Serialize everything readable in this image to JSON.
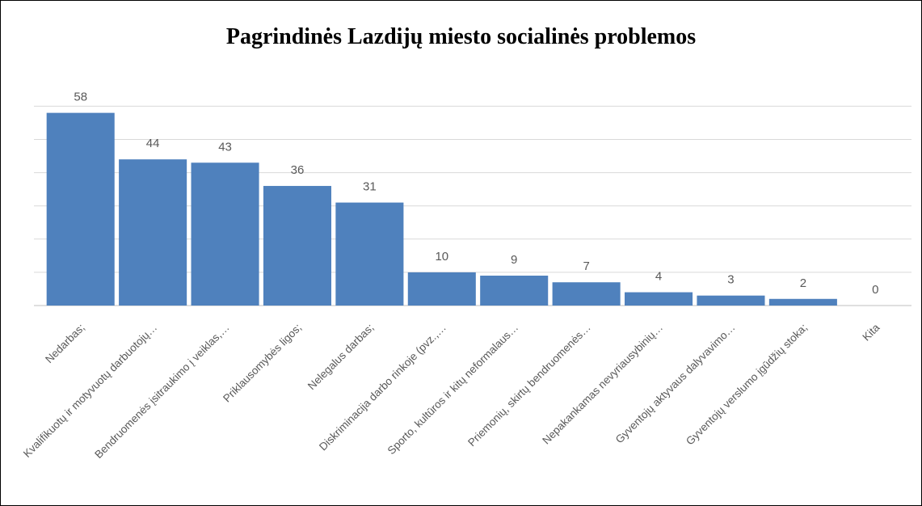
{
  "chart_data": {
    "type": "bar",
    "title": "Pagrindinės Lazdijų miesto socialinės problemos",
    "categories": [
      "Nedarbas;",
      "Kvalifikuotų ir motyvuotų darbuotojų…",
      "Bendruomenės įsitraukimo į veiklas,…",
      "Priklausomybės ligos;",
      "Nelegalus darbas;",
      "Diskriminacija darbo rinkoje (pvz.,…",
      "Sporto, kultūros ir kitų neformalaus…",
      "Priemonių, skirtų bendruomenės…",
      "Nepakankamas nevyriausybinių…",
      "Gyventojų aktyvaus dalyvavimo…",
      "Gyventojų verslumo įgūdžių stoka;",
      "Kita"
    ],
    "values": [
      58,
      44,
      43,
      36,
      31,
      10,
      9,
      7,
      4,
      3,
      2,
      0
    ],
    "xlabel": "",
    "ylabel": "",
    "ylim": [
      0,
      60
    ],
    "grid": true,
    "data_labels": true,
    "legend": "none",
    "bar_color": "#4f81bd",
    "gridline_color": "#d9d9d9"
  }
}
